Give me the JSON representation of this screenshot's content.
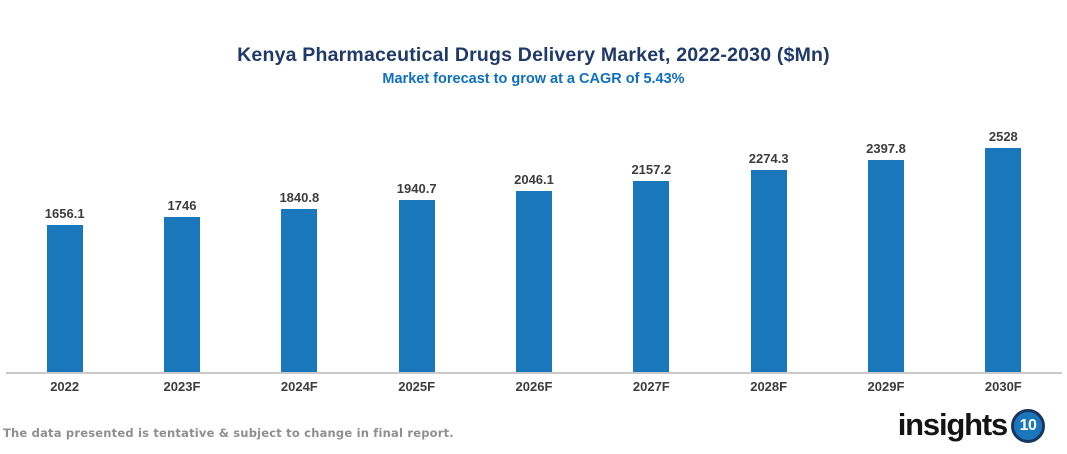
{
  "header": {
    "title": "Kenya Pharmaceutical Drugs Delivery Market, 2022-2030 ($Mn)",
    "subtitle": "Market forecast to grow at a CAGR of 5.43%"
  },
  "chart_data": {
    "type": "bar",
    "categories": [
      "2022",
      "2023F",
      "2024F",
      "2025F",
      "2026F",
      "2027F",
      "2028F",
      "2029F",
      "2030F"
    ],
    "values": [
      1656.1,
      1746,
      1840.8,
      1940.7,
      2046.1,
      2157.2,
      2274.3,
      2397.8,
      2528
    ],
    "title": "Kenya Pharmaceutical Drugs Delivery Market, 2022-2030 ($Mn)",
    "subtitle": "Market forecast to grow at a CAGR of 5.43%",
    "xlabel": "",
    "ylabel": "",
    "ylim": [
      0,
      2528
    ],
    "grid": false,
    "legend": false,
    "data_labels": true,
    "bar_color": "#1b77bb"
  },
  "footer": {
    "note": "The data presented is tentative & subject to change in final report.",
    "logo_text": "insights",
    "logo_badge": "10"
  },
  "colors": {
    "title": "#1f3969",
    "subtitle": "#0d6fc0",
    "bar": "#1b77bb",
    "data_label": "#3d3d3d",
    "axis_line": "#c9c9c9",
    "footnote": "#8f8f8f",
    "logo_text": "#141414",
    "logo_badge_bg": "#1b76bc",
    "logo_badge_ring": "#17355e"
  }
}
